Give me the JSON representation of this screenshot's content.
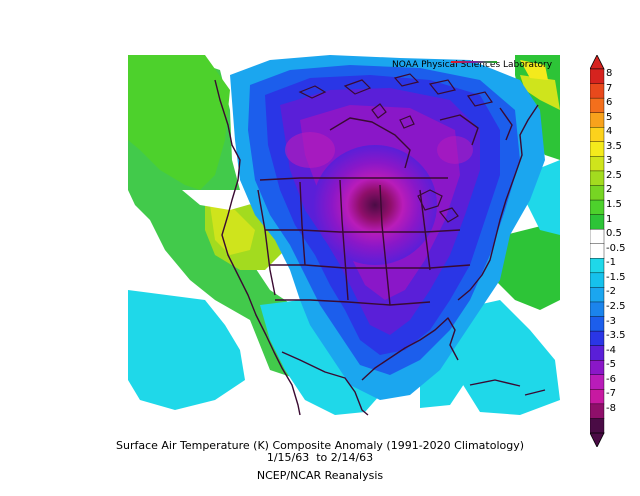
{
  "map": {
    "credit": "NOAA Physical Sciences Laboratory",
    "title_line1": "Surface Air Temperature (K) Composite Anomaly (1991-2020 Climatology)",
    "title_line2": "1/15/63  to 2/14/63",
    "title_line3": "NCEP/NCAR Reanalysis"
  },
  "colorbar": {
    "labels": [
      "8",
      "7",
      "6",
      "5",
      "4",
      "3.5",
      "3",
      "2.5",
      "2",
      "1.5",
      "1",
      "0.5",
      "-0.5",
      "-1",
      "-1.5",
      "-2",
      "-2.5",
      "-3",
      "-3.5",
      "-4",
      "-5",
      "-6",
      "-7",
      "-8"
    ],
    "colors": [
      "#d6231f",
      "#e8491c",
      "#f36f1c",
      "#f8a21c",
      "#fcd21c",
      "#f4ea1c",
      "#cfe41c",
      "#a3db1f",
      "#77d523",
      "#4dd12c",
      "#2dc437",
      "#ffffff",
      "#ffffff",
      "#1fd8e9",
      "#16c1ec",
      "#1ba6ef",
      "#1b84ec",
      "#1c5eec",
      "#2a36e6",
      "#5a1fd8",
      "#8a17c8",
      "#b91cb9",
      "#c719a1",
      "#8f0f6a",
      "#4a0b45"
    ]
  }
}
